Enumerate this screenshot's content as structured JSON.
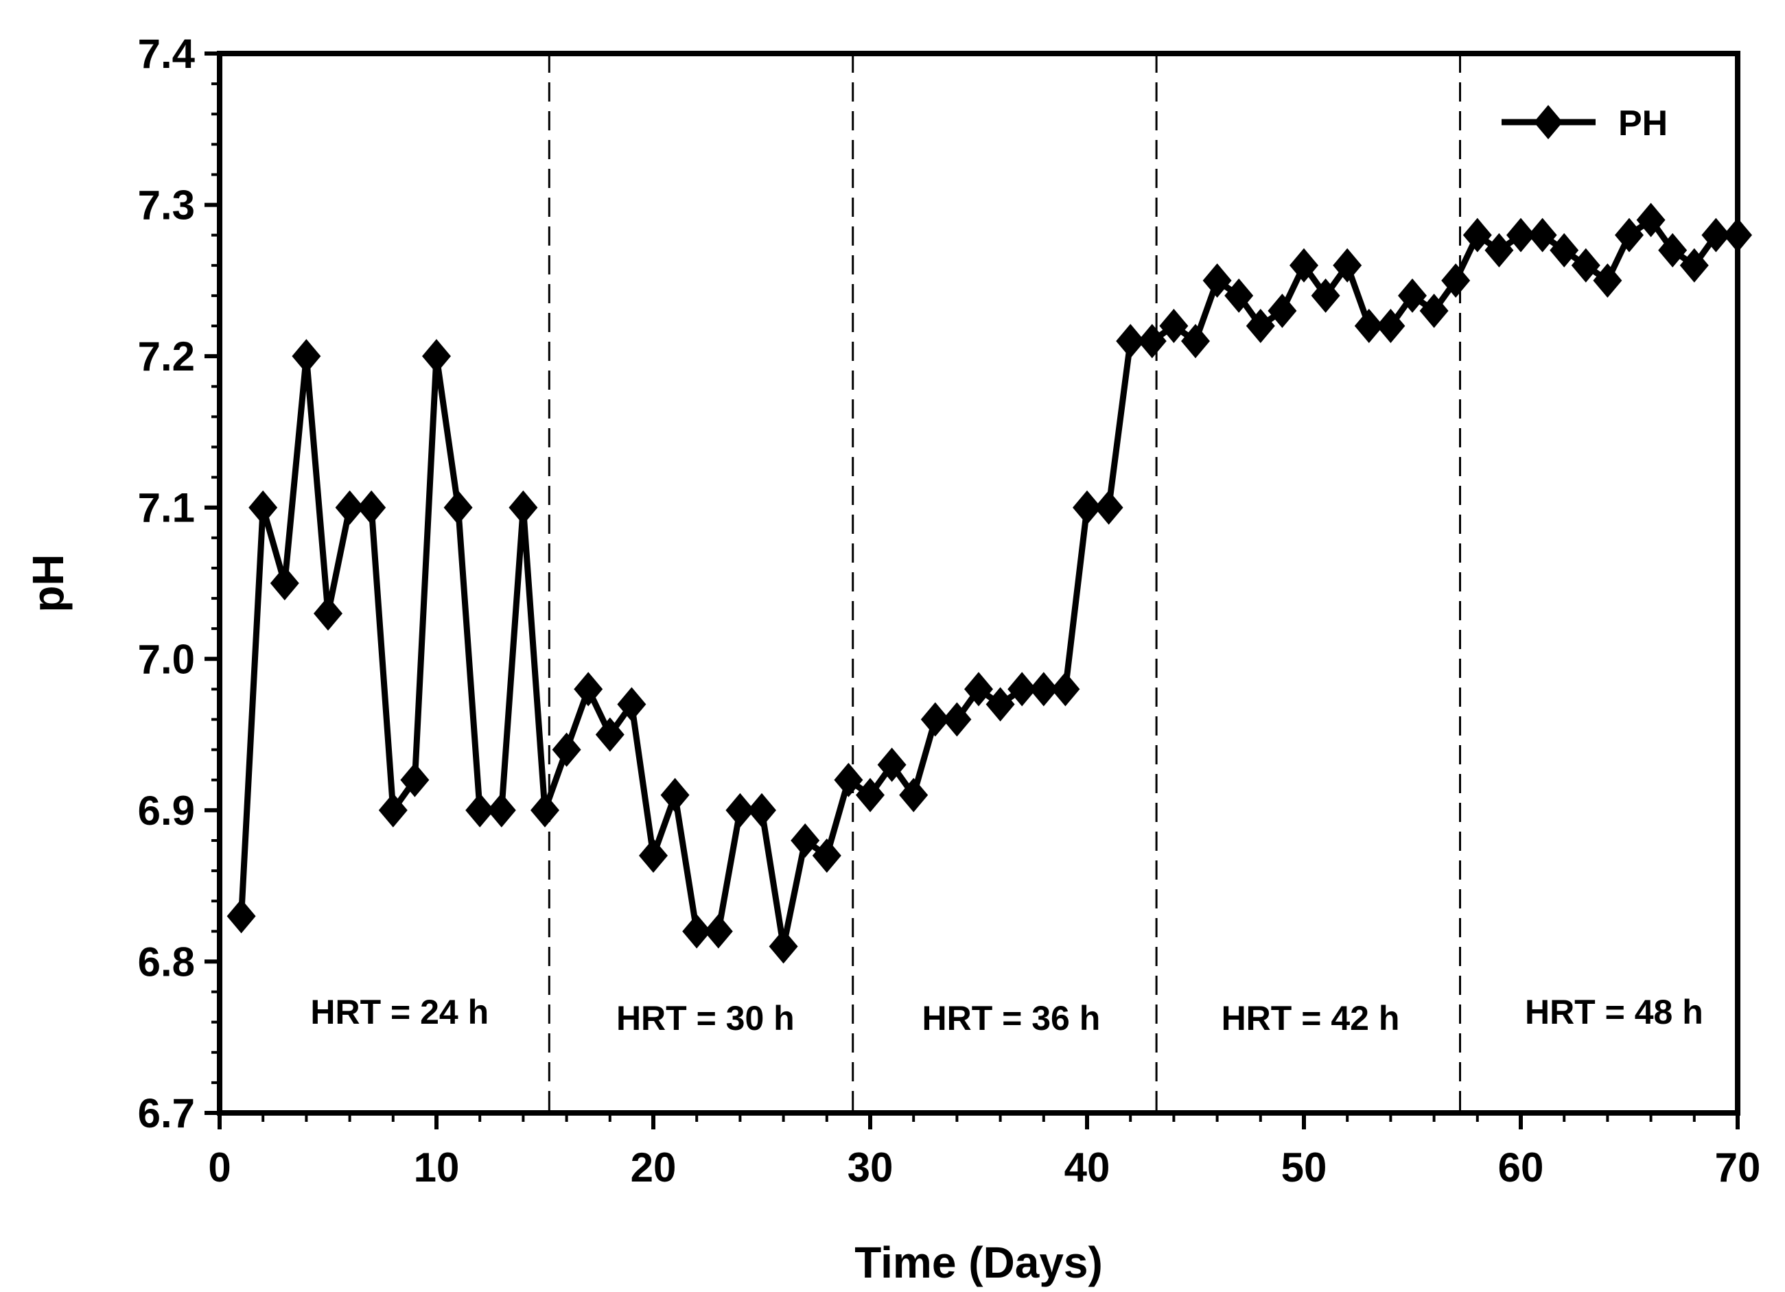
{
  "chart_data": {
    "type": "line",
    "xlabel": "Time (Days)",
    "ylabel": "pH",
    "xlim": [
      0,
      70
    ],
    "ylim": [
      6.7,
      7.4
    ],
    "x_ticks": [
      "0",
      "10",
      "20",
      "30",
      "40",
      "50",
      "60",
      "70"
    ],
    "y_ticks": [
      "6.7",
      "6.8",
      "6.9",
      "7.0",
      "7.1",
      "7.2",
      "7.3",
      "7.4"
    ],
    "grid": false,
    "legend_position": "top-right",
    "series": [
      {
        "name": "PH",
        "color": "#000000",
        "marker": "diamond",
        "x": [
          1,
          2,
          3,
          4,
          5,
          6,
          7,
          8,
          9,
          10,
          11,
          12,
          13,
          14,
          15,
          16,
          17,
          18,
          19,
          20,
          21,
          22,
          23,
          24,
          25,
          26,
          27,
          28,
          29,
          30,
          31,
          32,
          33,
          34,
          35,
          36,
          37,
          38,
          39,
          40,
          41,
          42,
          43,
          44,
          45,
          46,
          47,
          48,
          49,
          50,
          51,
          52,
          53,
          54,
          55,
          56,
          57,
          58,
          59,
          60,
          61,
          62,
          63,
          64,
          65,
          66,
          67,
          68,
          69,
          70
        ],
        "y": [
          6.83,
          7.1,
          7.05,
          7.2,
          7.03,
          7.1,
          7.1,
          6.9,
          6.92,
          7.2,
          7.1,
          6.9,
          6.9,
          7.1,
          6.9,
          6.94,
          6.98,
          6.95,
          6.97,
          6.87,
          6.91,
          6.82,
          6.82,
          6.9,
          6.9,
          6.81,
          6.88,
          6.87,
          6.92,
          6.91,
          6.93,
          6.91,
          6.96,
          6.96,
          6.98,
          6.97,
          6.98,
          6.98,
          6.98,
          7.1,
          7.1,
          7.21,
          7.21,
          7.22,
          7.21,
          7.25,
          7.24,
          7.22,
          7.23,
          7.26,
          7.24,
          7.26,
          7.22,
          7.22,
          7.24,
          7.23,
          7.25,
          7.28,
          7.27,
          7.28,
          7.28,
          7.27,
          7.26,
          7.25,
          7.28,
          7.29,
          7.27,
          7.26,
          7.28,
          7.28
        ]
      }
    ],
    "phase_dividers_x": [
      15.2,
      29.2,
      43.2,
      57.2
    ],
    "regions": [
      {
        "label": "HRT = 24 h",
        "x": 8.3,
        "y": 6.767
      },
      {
        "label": "HRT = 30 h",
        "x": 22.4,
        "y": 6.763
      },
      {
        "label": "HRT = 36 h",
        "x": 36.5,
        "y": 6.763
      },
      {
        "label": "HRT = 42 h",
        "x": 50.3,
        "y": 6.763
      },
      {
        "label": "HRT = 48 h",
        "x": 64.3,
        "y": 6.767
      }
    ]
  }
}
